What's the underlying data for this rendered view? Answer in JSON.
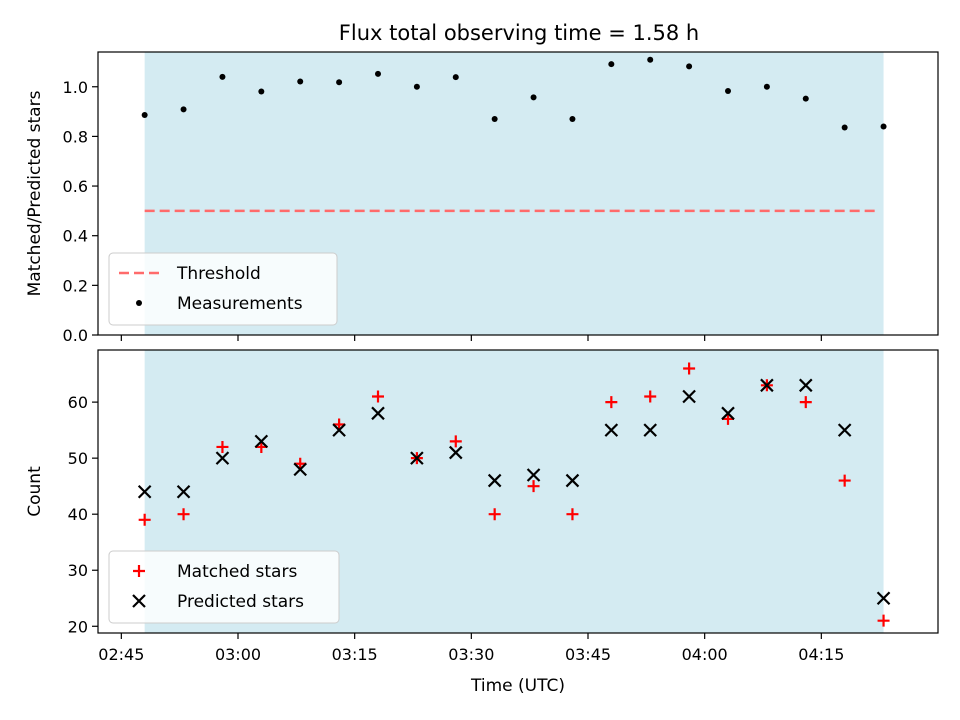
{
  "chart_data": [
    {
      "type": "scatter",
      "title": "Flux total observing time = 1.58 h",
      "ylabel": "Matched/Predicted stars",
      "xlabel": "",
      "ylim": [
        0,
        1.14
      ],
      "xlim": [
        "02:42",
        "04:30"
      ],
      "yticks": [
        0.0,
        0.2,
        0.4,
        0.6,
        0.8,
        1.0
      ],
      "ytick_labels": [
        "0.0",
        "0.2",
        "0.4",
        "0.6",
        "0.8",
        "1.0"
      ],
      "shaded_span": [
        "02:48",
        "04:23"
      ],
      "shade_color": "#add8e6",
      "legend_placement": "lower-left",
      "series": [
        {
          "name": "Threshold",
          "kind": "hline",
          "y": 0.5,
          "x_range": [
            "02:48",
            "04:23"
          ],
          "color": "#ff6b6b",
          "style": "dashed"
        },
        {
          "name": "Measurements",
          "kind": "points",
          "color": "#000000",
          "x": [
            "02:48",
            "02:53",
            "02:58",
            "03:03",
            "03:08",
            "03:13",
            "03:18",
            "03:23",
            "03:28",
            "03:33",
            "03:38",
            "03:43",
            "03:48",
            "03:53",
            "03:58",
            "04:03",
            "04:08",
            "04:13",
            "04:18",
            "04:23"
          ],
          "y": [
            0.886,
            0.909,
            1.04,
            0.981,
            1.021,
            1.018,
            1.052,
            1.0,
            1.039,
            0.87,
            0.957,
            0.87,
            1.091,
            1.109,
            1.082,
            0.983,
            1.0,
            0.952,
            0.836,
            0.84
          ]
        }
      ]
    },
    {
      "type": "scatter",
      "title": "",
      "ylabel": "Count",
      "xlabel": "Time (UTC)",
      "ylim": [
        18.8,
        69.3
      ],
      "xlim": [
        "02:42",
        "04:30"
      ],
      "yticks": [
        20,
        30,
        40,
        50,
        60
      ],
      "ytick_labels": [
        "20",
        "30",
        "40",
        "50",
        "60"
      ],
      "xticks": [
        "02:45",
        "03:00",
        "03:15",
        "03:30",
        "03:45",
        "04:00",
        "04:15"
      ],
      "shaded_span": [
        "02:48",
        "04:23"
      ],
      "shade_color": "#add8e6",
      "legend_placement": "lower-left",
      "series": [
        {
          "name": "Matched stars",
          "kind": "points",
          "marker": "plus",
          "color": "#ff0000",
          "x": [
            "02:48",
            "02:53",
            "02:58",
            "03:03",
            "03:08",
            "03:13",
            "03:18",
            "03:23",
            "03:28",
            "03:33",
            "03:38",
            "03:43",
            "03:48",
            "03:53",
            "03:58",
            "04:03",
            "04:08",
            "04:13",
            "04:18",
            "04:23"
          ],
          "y": [
            39,
            40,
            52,
            52,
            49,
            56,
            61,
            50,
            53,
            40,
            45,
            40,
            60,
            61,
            66,
            57,
            63,
            60,
            46,
            21
          ]
        },
        {
          "name": "Predicted stars",
          "kind": "points",
          "marker": "x",
          "color": "#000000",
          "x": [
            "02:48",
            "02:53",
            "02:58",
            "03:03",
            "03:08",
            "03:13",
            "03:18",
            "03:23",
            "03:28",
            "03:33",
            "03:38",
            "03:43",
            "03:48",
            "03:53",
            "03:58",
            "04:03",
            "04:08",
            "04:13",
            "04:18",
            "04:23"
          ],
          "y": [
            44,
            44,
            50,
            53,
            48,
            55,
            58,
            50,
            51,
            46,
            47,
            46,
            55,
            55,
            61,
            58,
            63,
            63,
            55,
            25
          ]
        }
      ]
    }
  ]
}
